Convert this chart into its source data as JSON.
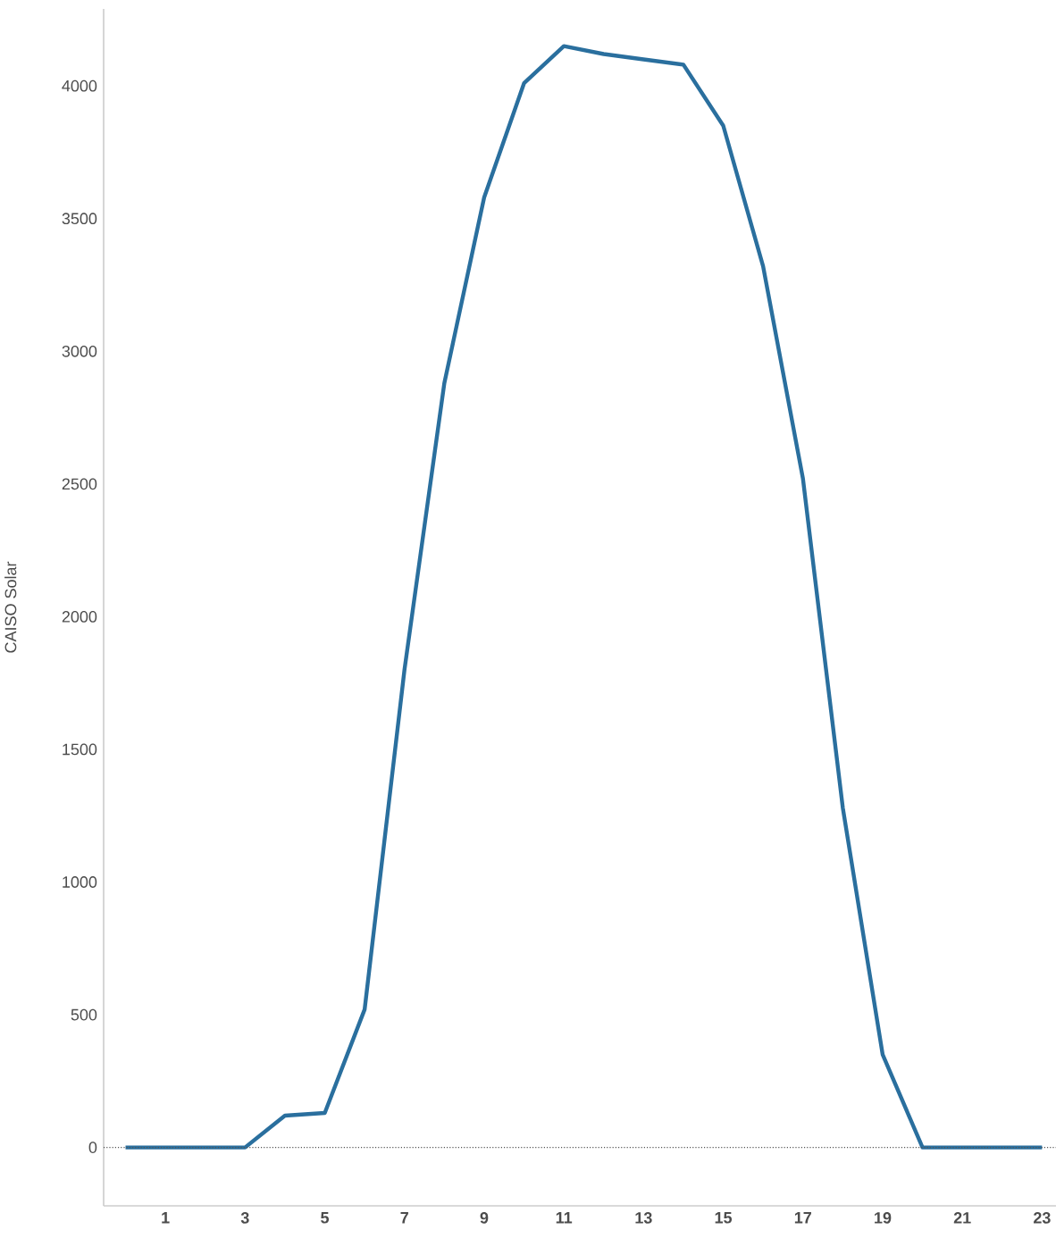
{
  "chart_data": {
    "type": "line",
    "ylabel": "CAISO Solar",
    "x": [
      0,
      1,
      2,
      3,
      4,
      5,
      6,
      7,
      8,
      9,
      10,
      11,
      12,
      13,
      14,
      15,
      16,
      17,
      18,
      19,
      20,
      21,
      22,
      23
    ],
    "series": [
      {
        "color": "#2a6f9e",
        "values": [
          0,
          0,
          0,
          0,
          120,
          130,
          520,
          1800,
          2880,
          3580,
          4010,
          4150,
          4120,
          4100,
          4080,
          3850,
          3320,
          2520,
          1280,
          350,
          0,
          0,
          0,
          0
        ]
      }
    ],
    "xlim": [
      -0.55,
      23.35
    ],
    "xticks": [
      1,
      3,
      5,
      7,
      9,
      11,
      13,
      15,
      17,
      19,
      21,
      23
    ],
    "ylim": [
      -220,
      4290
    ],
    "yticks": [
      0,
      500,
      1000,
      1500,
      2000,
      2500,
      3000,
      3500,
      4000
    ],
    "ref_lines": [
      {
        "axis": "y",
        "value": 0,
        "color": "#555555",
        "line_style": "dotted"
      }
    ],
    "marker": "none",
    "line_style": "solid"
  }
}
